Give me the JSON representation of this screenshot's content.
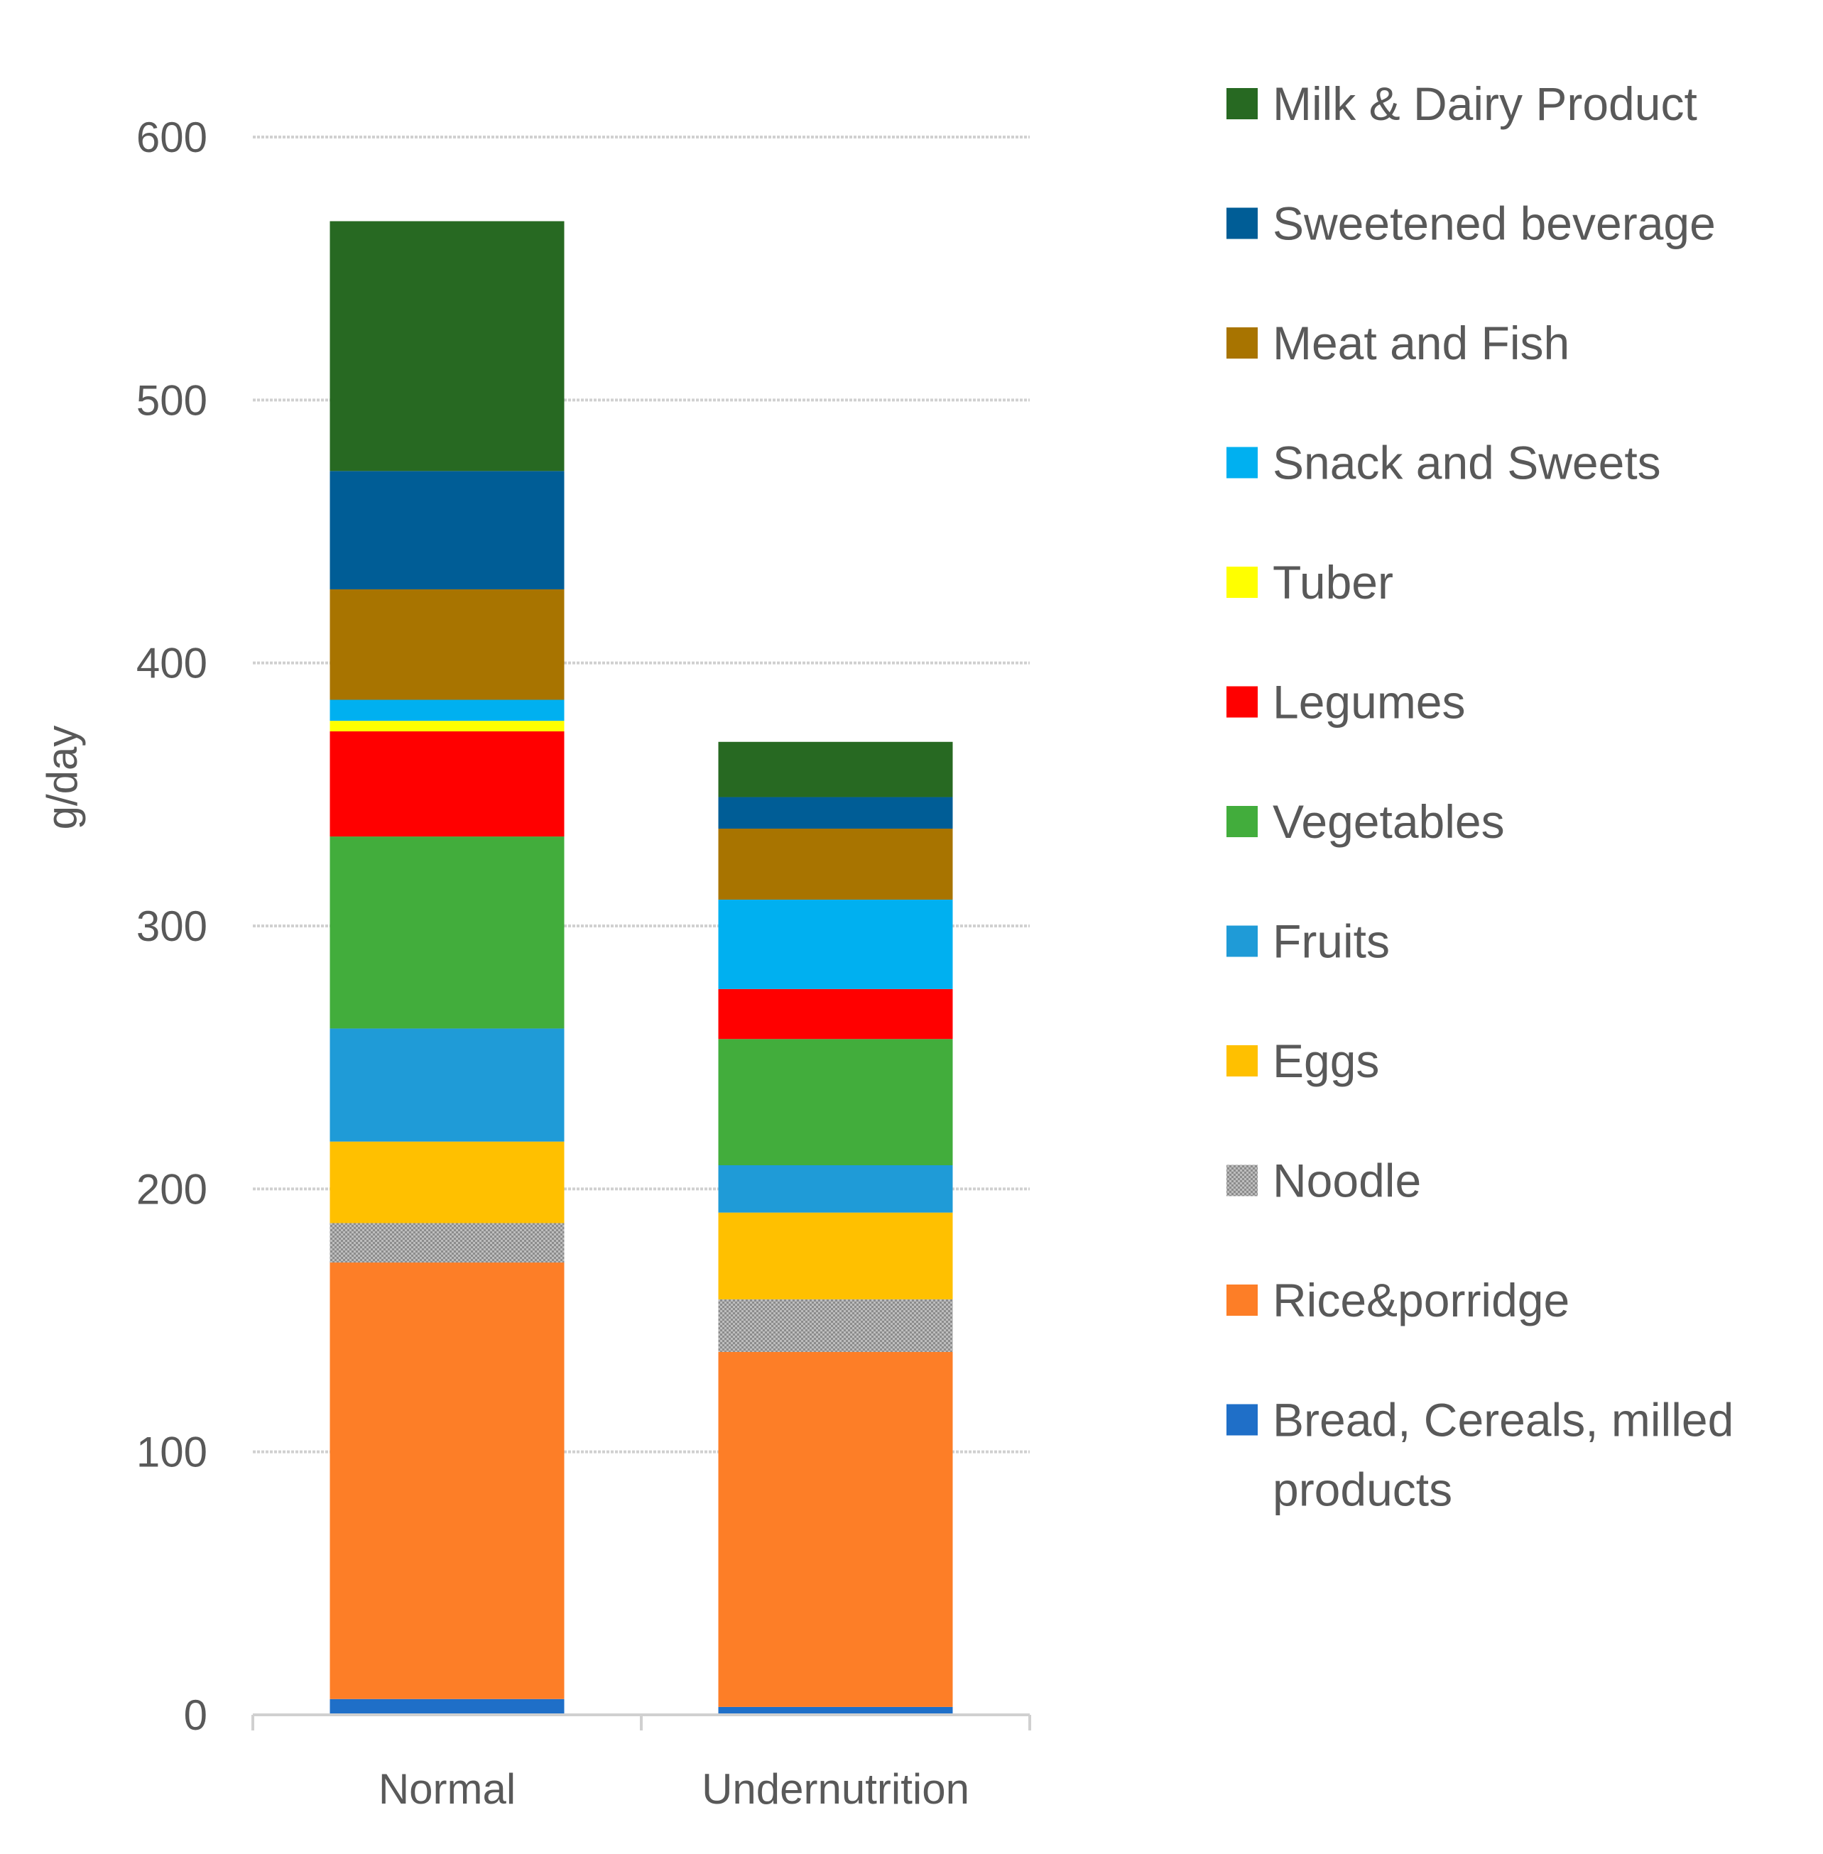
{
  "chart_data": {
    "type": "bar",
    "stacked": true,
    "title": "",
    "xlabel": "",
    "ylabel": "g/day",
    "ylim": [
      0,
      600
    ],
    "yticks": [
      0,
      100,
      200,
      300,
      400,
      500,
      600
    ],
    "categories": [
      "Normal",
      "Undernutrition"
    ],
    "grid": true,
    "legend_position": "right",
    "series": [
      {
        "name": "Bread, Cereals, milled products",
        "color": "#1f6fc8",
        "values": [
          6,
          3
        ]
      },
      {
        "name": "Rice&porridge",
        "color": "#fd7e27",
        "values": [
          166,
          135
        ]
      },
      {
        "name": "Noodle",
        "color": "#a6a6a6",
        "pattern": "dotted",
        "values": [
          15,
          20
        ]
      },
      {
        "name": "Eggs",
        "color": "#ffc000",
        "values": [
          31,
          33
        ]
      },
      {
        "name": "Fruits",
        "color": "#1f9bd7",
        "values": [
          43,
          18
        ]
      },
      {
        "name": "Vegetables",
        "color": "#42ad3c",
        "values": [
          73,
          48
        ]
      },
      {
        "name": "Legumes",
        "color": "#ff0000",
        "values": [
          40,
          19
        ]
      },
      {
        "name": "Tuber",
        "color": "#ffff00",
        "values": [
          4,
          0
        ]
      },
      {
        "name": "Snack and Sweets",
        "color": "#00b0f0",
        "values": [
          8,
          34
        ]
      },
      {
        "name": "Meat and Fish",
        "color": "#a87400",
        "values": [
          42,
          27
        ]
      },
      {
        "name": "Sweetened beverage",
        "color": "#005d96",
        "values": [
          45,
          12
        ]
      },
      {
        "name": "Milk & Dairy Product",
        "color": "#276922",
        "values": [
          95,
          21
        ]
      }
    ]
  }
}
